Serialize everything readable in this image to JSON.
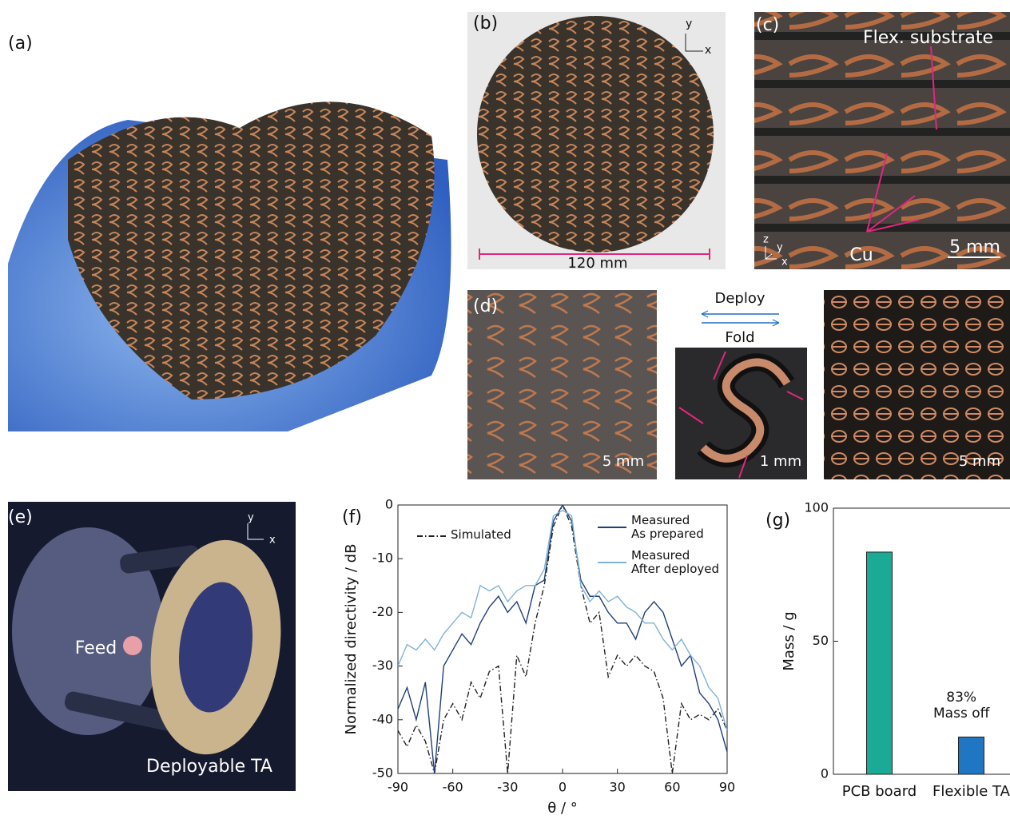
{
  "panels": {
    "a": {
      "label": "(a)"
    },
    "b": {
      "label": "(b)",
      "axis_y": "y",
      "axis_x": "x",
      "scale": "120 mm"
    },
    "c": {
      "label": "(c)",
      "substrate": "Flex. substrate",
      "copper": "Cu",
      "scale": "5 mm",
      "axis_z": "z",
      "axis_y": "y",
      "axis_x": "x"
    },
    "d": {
      "label": "(d)",
      "scale_left": "5 mm",
      "deploy": "Deploy",
      "fold": "Fold",
      "scale_middle": "1 mm",
      "scale_right": "5 mm"
    },
    "e": {
      "label": "(e)",
      "feed": "Feed",
      "antenna": "Deployable TA",
      "axis_y": "y",
      "axis_x": "x"
    }
  },
  "chart_data": [
    {
      "type": "line",
      "panel_label": "(f)",
      "x_label": "θ / °",
      "y_label": "Normalized directivity / dB",
      "x": [
        -90,
        -85,
        -80,
        -75,
        -70,
        -65,
        -60,
        -55,
        -50,
        -45,
        -40,
        -35,
        -30,
        -25,
        -20,
        -15,
        -10,
        -5,
        0,
        5,
        10,
        15,
        20,
        25,
        30,
        35,
        40,
        45,
        50,
        55,
        60,
        65,
        70,
        75,
        80,
        85,
        90
      ],
      "series": [
        {
          "name": "Simulated",
          "color": "#222222",
          "style": "dash-dot",
          "values": [
            -42,
            -45,
            -41,
            -44,
            -50,
            -40,
            -37,
            -40,
            -33,
            -36,
            -31,
            -30,
            -50,
            -28,
            -32,
            -22,
            -15,
            -4,
            0,
            -4,
            -15,
            -22,
            -20,
            -32,
            -28,
            -30,
            -28,
            -30,
            -31,
            -36,
            -50,
            -37,
            -40,
            -39,
            -40,
            -38,
            -42
          ]
        },
        {
          "name": "Measured\nAs prepared",
          "color": "#1f3f7a",
          "style": "solid",
          "values": [
            -38,
            -34,
            -40,
            -33,
            -50,
            -30,
            -27,
            -24,
            -26,
            -22,
            -19,
            -17,
            -20,
            -18,
            -22,
            -15,
            -14,
            -3,
            0,
            -3,
            -14,
            -17,
            -17,
            -20,
            -22,
            -22,
            -25,
            -20,
            -18,
            -20,
            -25,
            -30,
            -28,
            -35,
            -37,
            -40,
            -46
          ]
        },
        {
          "name": "Measured\nAfter deployed",
          "color": "#7fb3d5",
          "style": "solid",
          "values": [
            -30,
            -26,
            -27,
            -25,
            -27,
            -24,
            -22,
            -20,
            -21,
            -15,
            -16,
            -15,
            -18,
            -16,
            -15,
            -15,
            -12,
            -2,
            -1,
            -2,
            -15,
            -18,
            -16,
            -18,
            -17,
            -19,
            -20,
            -22,
            -22,
            -25,
            -27,
            -25,
            -28,
            -30,
            -34,
            -36,
            -42
          ]
        }
      ],
      "xlim": [
        -90,
        90
      ],
      "xticks": [
        -90,
        -60,
        -30,
        0,
        30,
        60,
        90
      ],
      "ylim": [
        -50,
        0
      ],
      "yticks": [
        0,
        -10,
        -20,
        -30,
        -40,
        -50
      ]
    },
    {
      "type": "bar",
      "panel_label": "(g)",
      "y_label": "Mass / g",
      "categories": [
        "PCB board",
        "Flexible TA"
      ],
      "values": [
        83.5,
        14
      ],
      "colors": [
        "#1aaa96",
        "#1f77c4"
      ],
      "annotation": "83%\nMass off",
      "ylim": [
        0,
        100
      ],
      "yticks": [
        0,
        50,
        100
      ]
    }
  ]
}
